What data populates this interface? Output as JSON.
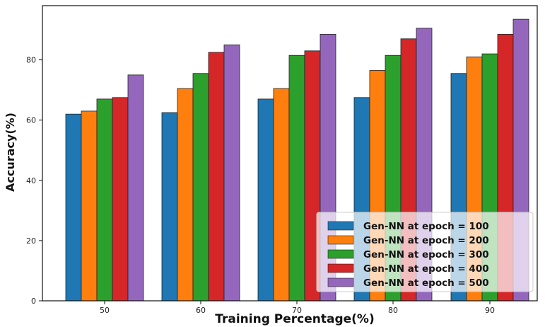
{
  "chart_data": {
    "type": "bar",
    "title": "",
    "xlabel": "Training Percentage(%)",
    "ylabel": "Accuracy(%)",
    "categories": [
      "50",
      "60",
      "70",
      "80",
      "90"
    ],
    "ylim": [
      0,
      98
    ],
    "yticks": [
      0,
      20,
      40,
      60,
      80
    ],
    "grid": false,
    "legend_position": "bottom-right",
    "series": [
      {
        "name": "Gen-NN at epoch = 100",
        "color": "#1f77b4",
        "values": [
          62,
          62.5,
          67,
          67.5,
          75.5
        ]
      },
      {
        "name": "Gen-NN at epoch = 200",
        "color": "#ff7f0e",
        "values": [
          63,
          70.5,
          70.5,
          76.5,
          81
        ]
      },
      {
        "name": "Gen-NN at epoch = 300",
        "color": "#2ca02c",
        "values": [
          67,
          75.5,
          81.5,
          81.5,
          82
        ]
      },
      {
        "name": "Gen-NN at epoch = 400",
        "color": "#d62728",
        "values": [
          67.5,
          82.5,
          83,
          87,
          88.5
        ]
      },
      {
        "name": "Gen-NN at epoch = 500",
        "color": "#9467bd",
        "values": [
          75,
          85,
          88.5,
          90.5,
          93.5
        ]
      }
    ]
  }
}
